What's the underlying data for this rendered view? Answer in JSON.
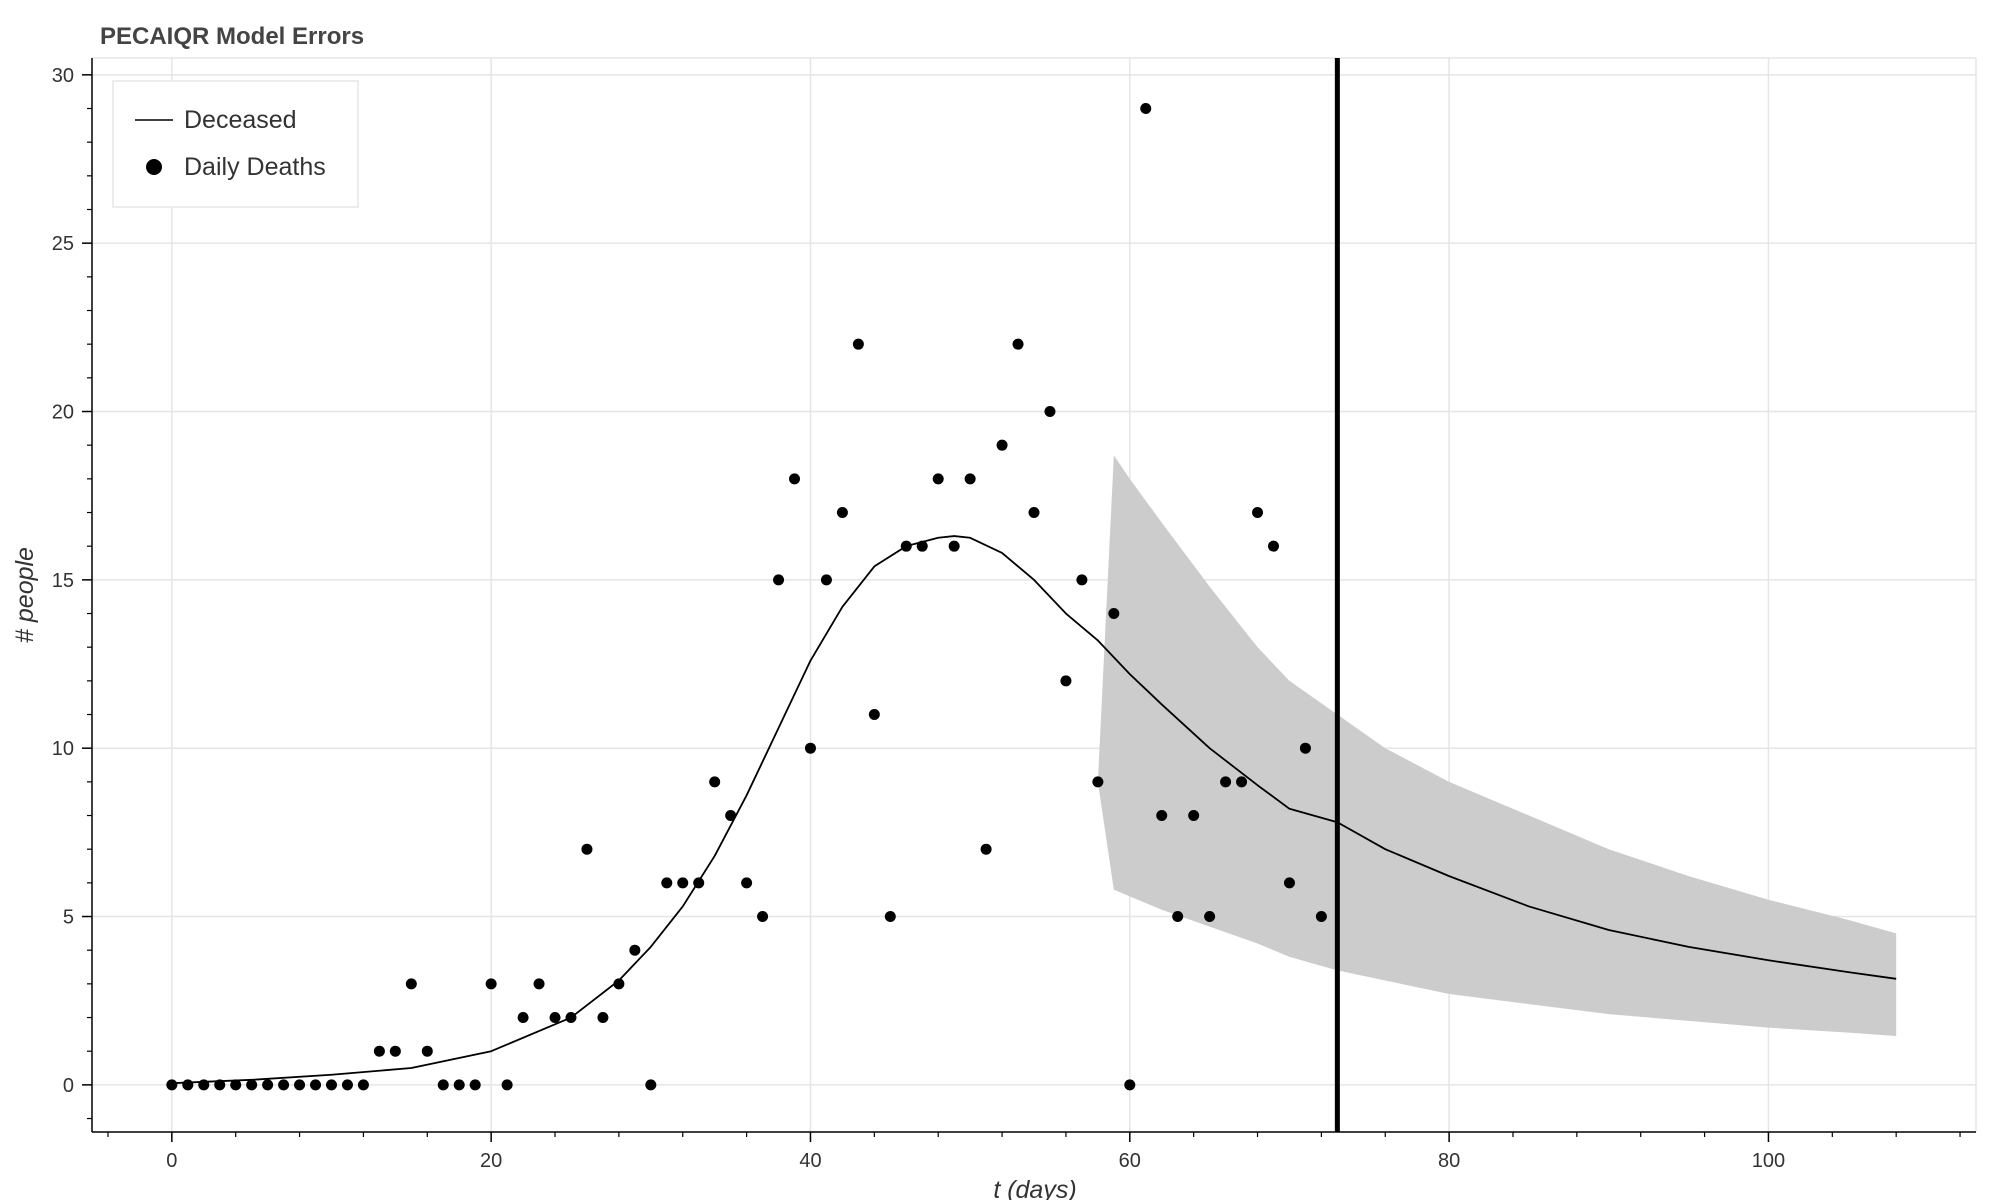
{
  "chart_data": {
    "type": "scatter",
    "title": "PECAIQR Model Errors",
    "xlabel": "t (days)",
    "ylabel": "# people",
    "xlim": [
      -5,
      113
    ],
    "ylim": [
      -1.4,
      30.5
    ],
    "x_ticks": [
      0,
      20,
      40,
      60,
      80,
      100
    ],
    "y_ticks": [
      0,
      5,
      10,
      15,
      20,
      25,
      30
    ],
    "x_tick_labels": [
      "0",
      "20",
      "40",
      "60",
      "80",
      "100"
    ],
    "y_tick_labels": [
      "0",
      "5",
      "10",
      "15",
      "20",
      "25",
      "30"
    ],
    "grid": true,
    "legend_position": "top-left",
    "legend": [
      {
        "label": "Deceased",
        "kind": "line"
      },
      {
        "label": "Daily Deaths",
        "kind": "marker"
      }
    ],
    "colors": {
      "line": "#000000",
      "points": "#000000",
      "band": "#cccccc",
      "vline": "#000000",
      "grid": "#e5e5e5"
    },
    "vline_x": 73,
    "series": [
      {
        "name": "Daily Deaths",
        "kind": "scatter",
        "x": [
          0,
          1,
          2,
          3,
          4,
          5,
          6,
          7,
          8,
          9,
          10,
          11,
          12,
          13,
          14,
          15,
          16,
          17,
          18,
          19,
          20,
          21,
          22,
          23,
          24,
          25,
          26,
          27,
          28,
          29,
          30,
          31,
          32,
          33,
          34,
          35,
          36,
          37,
          38,
          39,
          40,
          41,
          42,
          43,
          44,
          45,
          46,
          47,
          48,
          49,
          50,
          51,
          52,
          53,
          54,
          55,
          56,
          57,
          58,
          59,
          60,
          61,
          62,
          63,
          64,
          65,
          66,
          67,
          68,
          69,
          70,
          71,
          72
        ],
        "y": [
          0,
          0,
          0,
          0,
          0,
          0,
          0,
          0,
          0,
          0,
          0,
          0,
          0,
          1,
          1,
          3,
          1,
          0,
          0,
          0,
          3,
          0,
          2,
          3,
          2,
          2,
          7,
          2,
          3,
          4,
          0,
          6,
          6,
          6,
          9,
          8,
          6,
          5,
          15,
          18,
          10,
          15,
          17,
          22,
          11,
          5,
          16,
          16,
          18,
          16,
          18,
          7,
          19,
          22,
          17,
          20,
          12,
          15,
          9,
          14,
          0,
          29,
          8,
          5,
          8,
          5,
          9,
          9,
          17,
          16,
          6,
          10,
          5
        ]
      },
      {
        "name": "Deceased",
        "kind": "line",
        "x": [
          0,
          5,
          10,
          15,
          20,
          25,
          28,
          30,
          32,
          34,
          36,
          38,
          40,
          42,
          44,
          46,
          48,
          49,
          50,
          52,
          54,
          56,
          58,
          60,
          62,
          65,
          68,
          70,
          73,
          76,
          80,
          85,
          90,
          95,
          100,
          105,
          108
        ],
        "y": [
          0.05,
          0.15,
          0.3,
          0.5,
          1.0,
          2.0,
          3.1,
          4.1,
          5.3,
          6.8,
          8.6,
          10.6,
          12.6,
          14.2,
          15.4,
          16.0,
          16.25,
          16.3,
          16.25,
          15.8,
          15.0,
          14.0,
          13.2,
          12.2,
          11.3,
          10.0,
          8.9,
          8.2,
          7.8,
          7.0,
          6.2,
          5.3,
          4.6,
          4.1,
          3.7,
          3.35,
          3.15
        ]
      },
      {
        "name": "Uncertainty band",
        "kind": "band",
        "x": [
          58,
          59,
          60,
          62,
          65,
          68,
          70,
          73,
          76,
          80,
          85,
          90,
          95,
          100,
          105,
          108
        ],
        "lower": [
          9.0,
          5.8,
          5.6,
          5.2,
          4.7,
          4.2,
          3.8,
          3.4,
          3.1,
          2.7,
          2.4,
          2.1,
          1.9,
          1.7,
          1.55,
          1.45
        ],
        "upper": [
          9.0,
          18.7,
          18.0,
          16.7,
          14.8,
          13.0,
          12.0,
          11.0,
          10.0,
          9.0,
          8.0,
          7.0,
          6.2,
          5.5,
          4.9,
          4.5
        ]
      }
    ]
  }
}
